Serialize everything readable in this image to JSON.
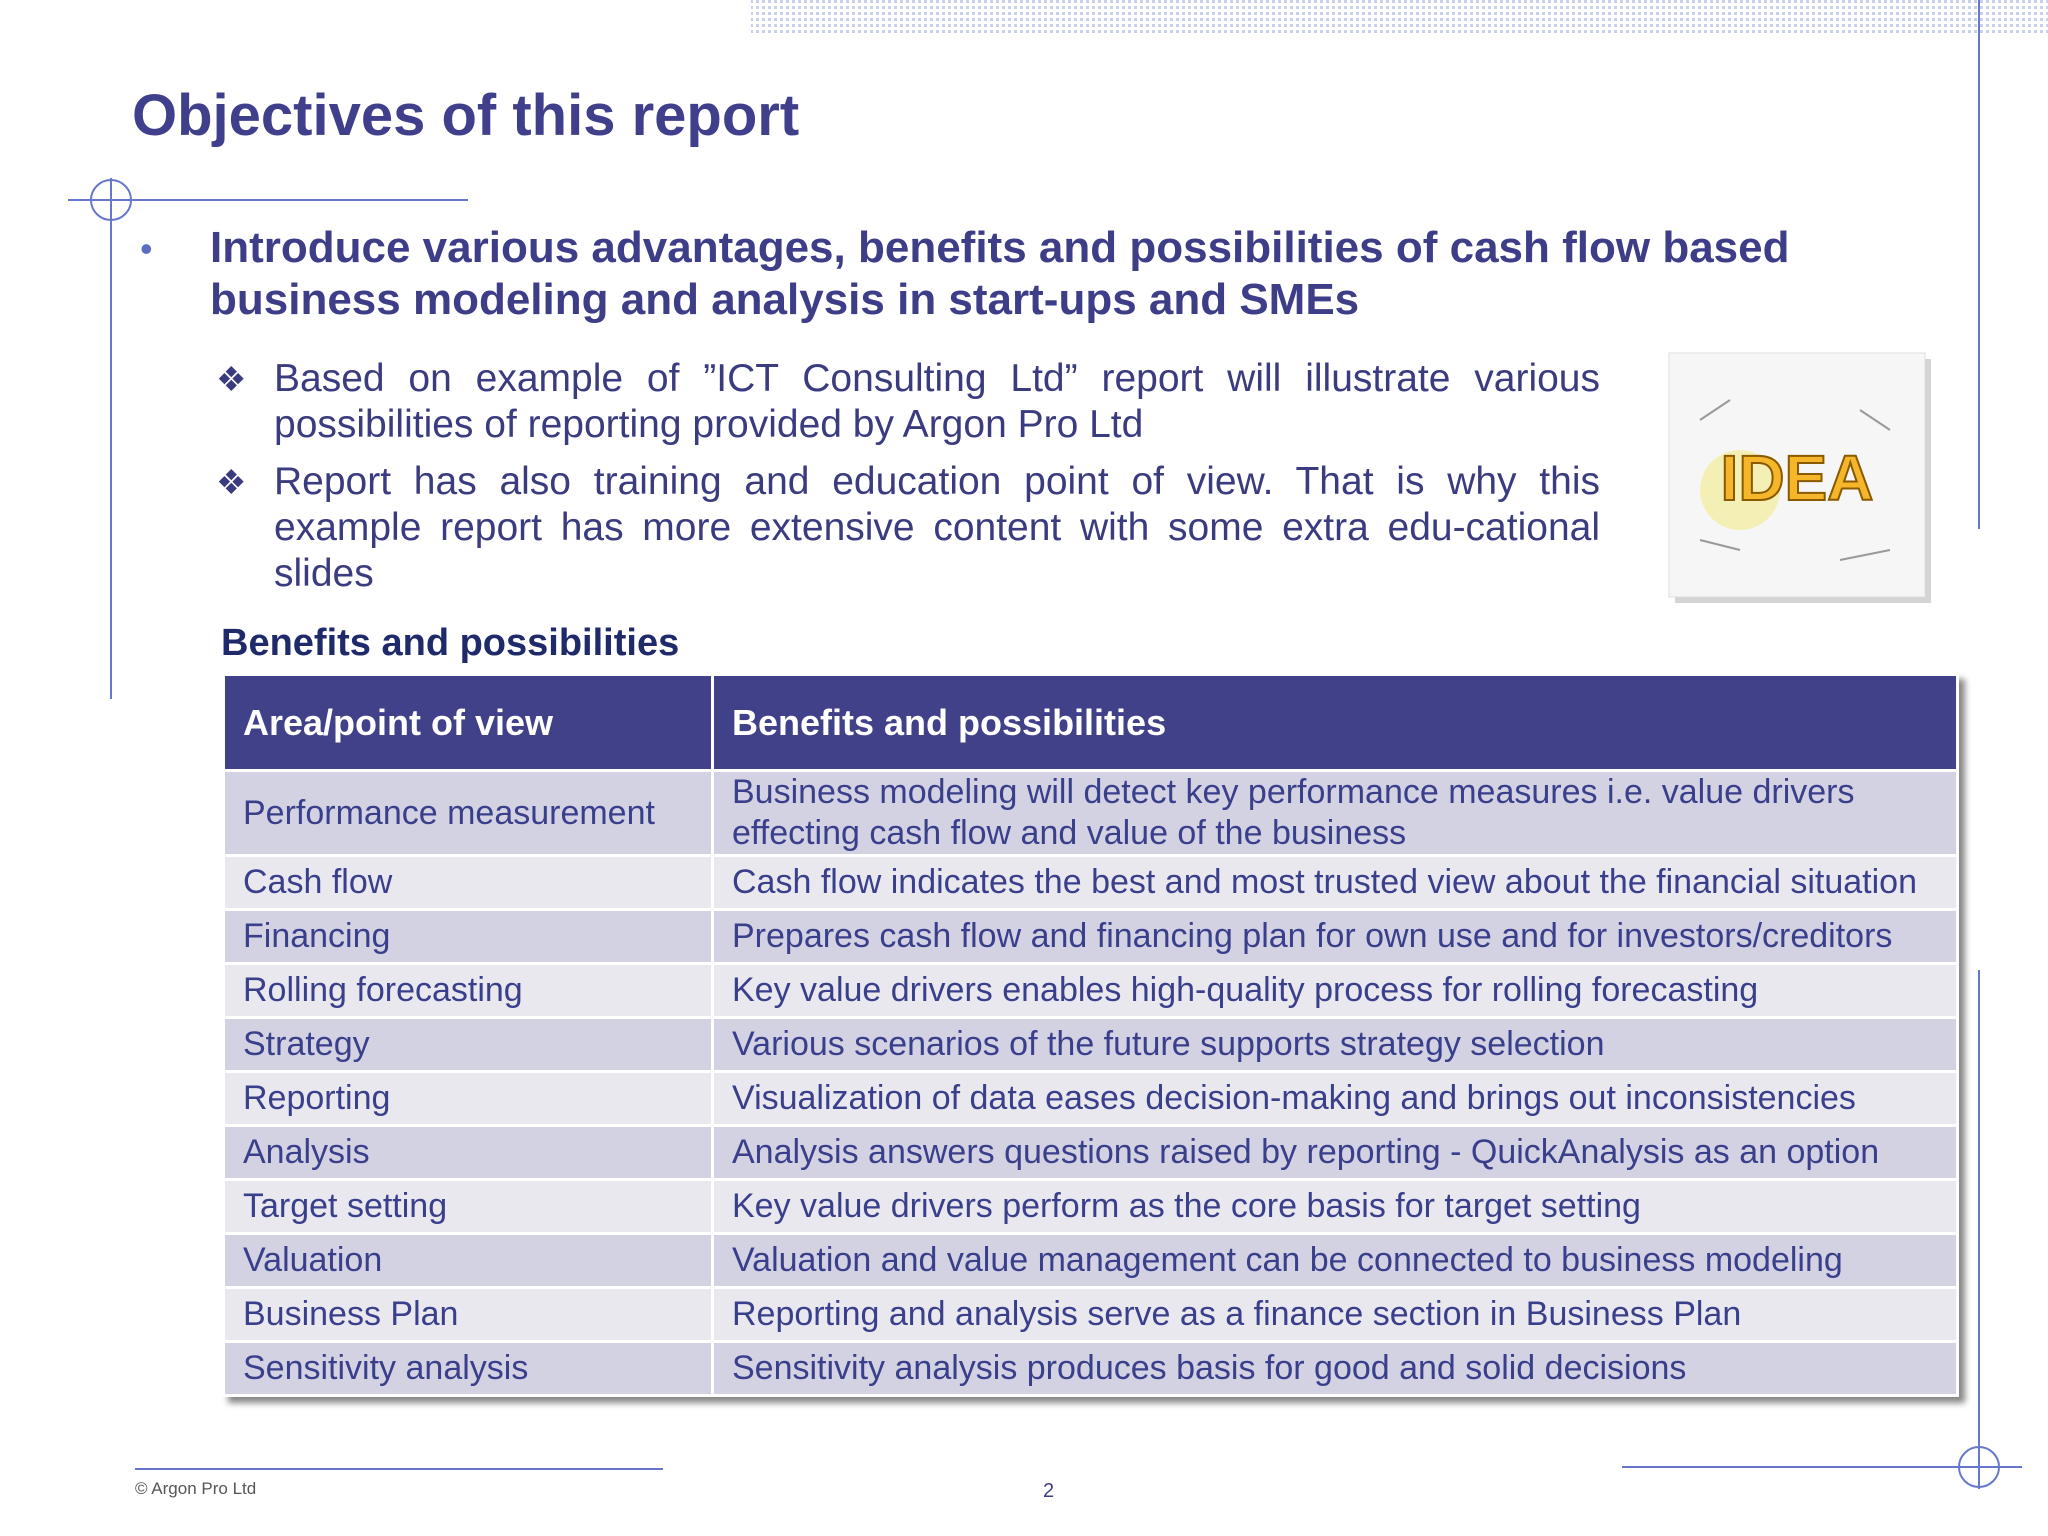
{
  "header": {
    "title": "Objectives of this report"
  },
  "bullet": "Introduce various advantages, benefits and possibilities of cash flow based business modeling and analysis in start-ups and SMEs",
  "sub_bullets": [
    "Based on example of ”ICT Consulting Ltd” report will illustrate various possibilities of reporting provided by Argon Pro Ltd",
    "Report has also training and education point of view. That is why this example report has more extensive content with some extra edu-cational slides"
  ],
  "image": {
    "label": "IDEA"
  },
  "table": {
    "caption": "Benefits and possibilities",
    "header": [
      "Area/point of view",
      "Benefits and possibilities"
    ],
    "rows": [
      [
        "Performance measurement",
        "Business modeling will detect key performance measures i.e. value drivers effecting cash flow and value of the business"
      ],
      [
        "Cash flow",
        "Cash flow indicates the best and most trusted view about the financial situation"
      ],
      [
        "Financing",
        "Prepares cash flow and financing plan for own use and for investors/creditors"
      ],
      [
        "Rolling forecasting",
        "Key value drivers enables high-quality process for rolling forecasting"
      ],
      [
        "Strategy",
        "Various scenarios of the future supports strategy selection"
      ],
      [
        "Reporting",
        "Visualization of data eases decision-making and brings out inconsistencies"
      ],
      [
        "Analysis",
        "Analysis answers questions raised by reporting - QuickAnalysis as an option"
      ],
      [
        "Target setting",
        "Key value drivers perform as the core basis for target setting"
      ],
      [
        "Valuation",
        "Valuation and value management can be connected to business modeling"
      ],
      [
        "Business Plan",
        "Reporting and analysis serve as a finance section in Business Plan"
      ],
      [
        "Sensitivity analysis",
        "Sensitivity analysis produces basis for good and solid decisions"
      ]
    ]
  },
  "footer": {
    "copyright": "© Argon Pro Ltd",
    "page": "2"
  }
}
